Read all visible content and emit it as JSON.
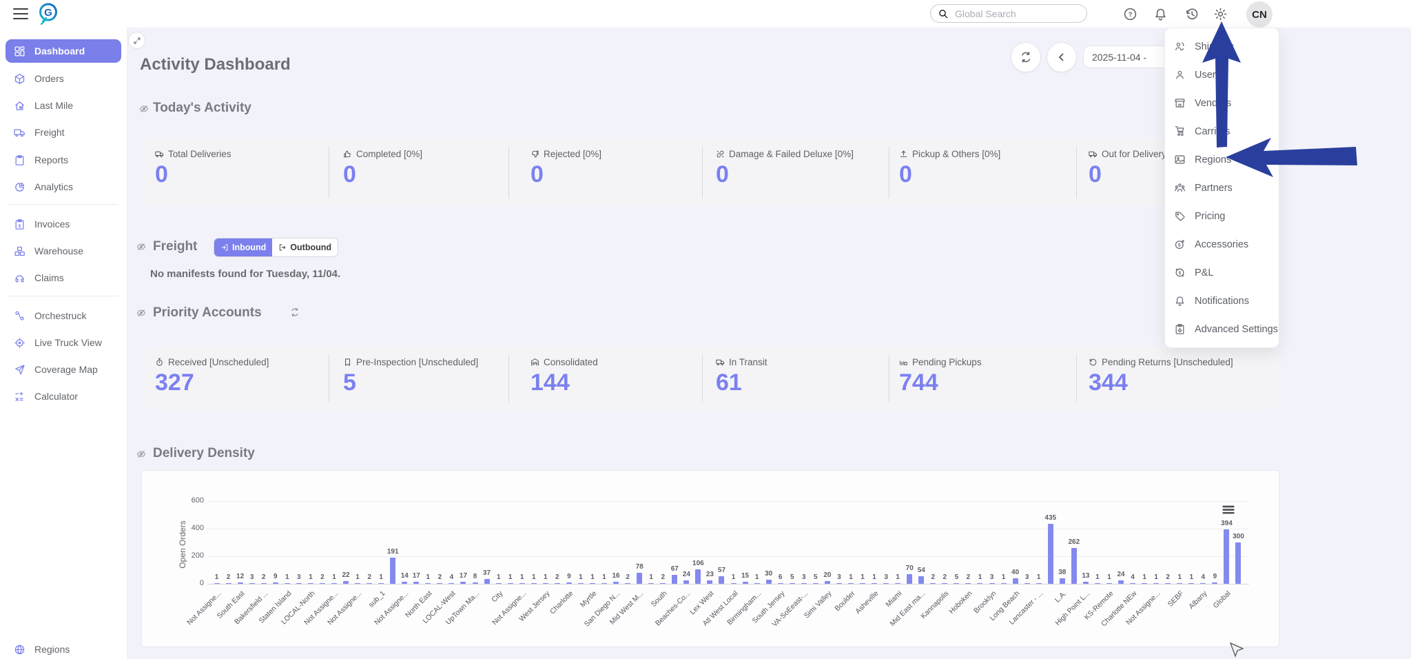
{
  "colors": {
    "accent": "#7b80ec",
    "bar": "#8489ee",
    "arrow_blue": "#2a3f9d",
    "active_nav_bg": "#7a7fe9",
    "value_text": "#7b80f0"
  },
  "icons": {
    "hamburger-menu": "three-bars",
    "app-logo": "G-circle",
    "search": "magnifier",
    "help": "question-circle",
    "notifications": "bell",
    "history": "clock-back-arrow",
    "settings": "gear",
    "refresh": "circular-arrows",
    "back": "chevron-left",
    "expand": "diagonal-arrows",
    "visibility": "eye-slash",
    "chart-menu": "three-bars",
    "annotation-arrows": "hand-drawn-blue-arrows",
    "cursor": "mouse-pointer"
  },
  "topbar": {
    "search_placeholder": "Global Search",
    "avatar_initials": "CN"
  },
  "sidebar": {
    "groups": [
      {
        "items": [
          {
            "label": "Dashboard",
            "icon": "grid",
            "active": true
          },
          {
            "label": "Orders",
            "icon": "box"
          },
          {
            "label": "Last Mile",
            "icon": "home"
          },
          {
            "label": "Freight",
            "icon": "truck"
          },
          {
            "label": "Reports",
            "icon": "clipboard"
          },
          {
            "label": "Analytics",
            "icon": "pie"
          }
        ]
      },
      {
        "items": [
          {
            "label": "Invoices",
            "icon": "invoice"
          },
          {
            "label": "Warehouse",
            "icon": "warehouse"
          },
          {
            "label": "Claims",
            "icon": "headset"
          }
        ]
      },
      {
        "items": [
          {
            "label": "Orchestruck",
            "icon": "route"
          },
          {
            "label": "Live Truck View",
            "icon": "target"
          },
          {
            "label": "Coverage Map",
            "icon": "send"
          },
          {
            "label": "Calculator",
            "icon": "calc"
          }
        ]
      }
    ],
    "bottom_item": {
      "label": "Regions",
      "icon": "globe"
    }
  },
  "settings_menu": {
    "items": [
      {
        "label": "Shippers",
        "icon": "shippers"
      },
      {
        "label": "Users",
        "icon": "users"
      },
      {
        "label": "Vendors",
        "icon": "store"
      },
      {
        "label": "Carriers",
        "icon": "trolley"
      },
      {
        "label": "Regions",
        "icon": "mapimg"
      },
      {
        "label": "Partners",
        "icon": "group"
      },
      {
        "label": "Pricing",
        "icon": "tag"
      },
      {
        "label": "Accessories",
        "icon": "dollarplus"
      },
      {
        "label": "P&L",
        "icon": "dollarcyc"
      },
      {
        "label": "Notifications",
        "icon": "bell"
      },
      {
        "label": "Advanced Settings",
        "icon": "clipgear"
      }
    ]
  },
  "main": {
    "title": "Activity Dashboard",
    "date_value": "2025-11-04 -",
    "today": {
      "title": "Today's Activity",
      "stats": [
        {
          "label": "Total Deliveries",
          "value": "0",
          "icon": "truck"
        },
        {
          "label": "Completed [0%]",
          "value": "0",
          "icon": "thumbup"
        },
        {
          "label": "Rejected [0%]",
          "value": "0",
          "icon": "thumbdown"
        },
        {
          "label": "Damage & Failed Deluxe [0%]",
          "value": "0",
          "icon": "brokenlink"
        },
        {
          "label": "Pickup & Others [0%]",
          "value": "0",
          "icon": "upload"
        },
        {
          "label": "Out for Delivery",
          "value": "0",
          "icon": "truck"
        }
      ]
    },
    "freight": {
      "title": "Freight",
      "toggle": {
        "inbound": "Inbound",
        "outbound": "Outbound",
        "active": "inbound"
      },
      "empty_message": "No manifests found for Tuesday, 11/04."
    },
    "priority": {
      "title": "Priority Accounts",
      "stats": [
        {
          "label": "Received [Unscheduled]",
          "value": "327",
          "icon": "timer"
        },
        {
          "label": "Pre-Inspection [Unscheduled]",
          "value": "5",
          "icon": "bookmark"
        },
        {
          "label": "Consolidated",
          "value": "144",
          "icon": "garage"
        },
        {
          "label": "In Transit",
          "value": "61",
          "icon": "truck"
        },
        {
          "label": "Pending Pickups",
          "value": "744",
          "icon": "pickup"
        },
        {
          "label": "Pending Returns [Unscheduled]",
          "value": "344",
          "icon": "return"
        }
      ]
    },
    "density": {
      "title": "Delivery Density"
    }
  },
  "chart_data": {
    "type": "bar",
    "title": "Delivery Density",
    "xlabel": "",
    "ylabel": "Open Orders",
    "ylim": [
      0,
      600
    ],
    "yticks": [
      0,
      200,
      400,
      600
    ],
    "grid": true,
    "legend": false,
    "bar_color": "#8489ee",
    "label_every_n_bars": 2,
    "categories": [
      "Not Assigne...",
      "South East",
      "Bakersfield ...",
      "Staten Island",
      "LOCAL-North",
      "Not Assigne...",
      "Not Assigne...",
      "sub_1",
      "Not Assigne...",
      "North East",
      "LOCAL-West",
      "UpTown Ma...",
      "City",
      "Not Assigne...",
      "West Jersey",
      "Charlotte",
      "Myrtle",
      "San Diego N...",
      "Mid West M...",
      "South",
      "Beaches-Co...",
      "Lex West",
      "Atl West Local",
      "Birmingham...",
      "South Jersey",
      "VA-SoEeast-...",
      "Simi Valley",
      "Boulder",
      "Asheville",
      "Miami",
      "Mid East ma...",
      "Kannapolis",
      "Hoboken",
      "Brooklyn",
      "Long Beach",
      "Lancaster - ...",
      "L.A.",
      "High Point L...",
      "KS-Remote",
      "Charlotte NEw",
      "Not Assigne...",
      "SEBF",
      "Albany",
      "Global"
    ],
    "values": [
      1,
      2,
      12,
      3,
      2,
      9,
      1,
      3,
      1,
      2,
      1,
      22,
      1,
      2,
      1,
      191,
      14,
      17,
      1,
      2,
      4,
      17,
      8,
      37,
      1,
      1,
      1,
      1,
      1,
      2,
      9,
      1,
      1,
      1,
      16,
      2,
      78,
      1,
      2,
      67,
      24,
      106,
      23,
      57,
      1,
      15,
      1,
      30,
      6,
      5,
      3,
      5,
      20,
      3,
      1,
      1,
      1,
      3,
      1,
      70,
      54,
      2,
      2,
      5,
      2,
      1,
      3,
      1,
      40,
      3,
      1,
      435,
      38,
      262,
      13,
      1,
      1,
      24,
      4,
      1,
      1,
      2,
      1,
      1,
      4,
      9,
      394,
      300
    ]
  }
}
